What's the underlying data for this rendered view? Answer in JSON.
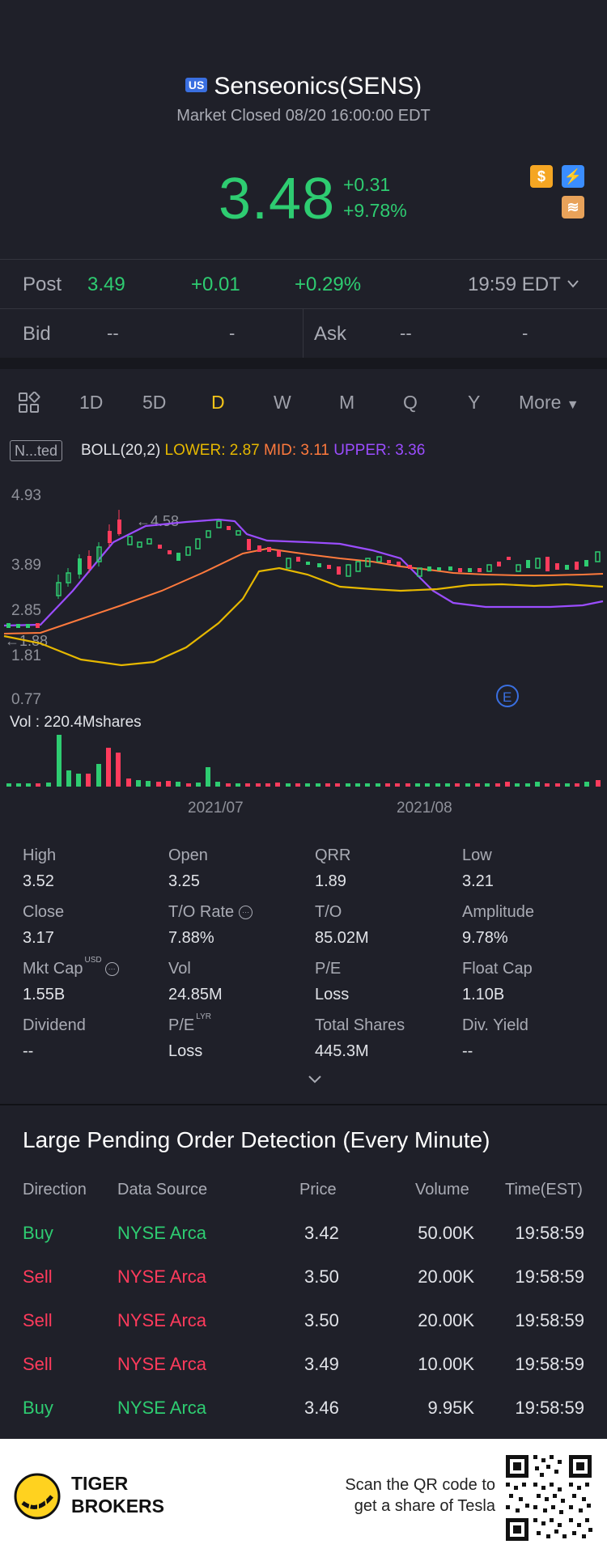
{
  "header": {
    "market_badge": "US",
    "title": "Senseonics(SENS)",
    "subtitle": "Market Closed 08/20 16:00:00 EDT",
    "price": "3.48",
    "change": "+0.31",
    "change_pct": "+9.78%"
  },
  "post": {
    "label": "Post",
    "price": "3.49",
    "change": "+0.01",
    "change_pct": "+0.29%",
    "time": "19:59 EDT"
  },
  "bidask": {
    "bid_label": "Bid",
    "bid_price": "--",
    "bid_size": "-",
    "ask_label": "Ask",
    "ask_price": "--",
    "ask_size": "-"
  },
  "tabs": [
    "1D",
    "5D",
    "D",
    "W",
    "M",
    "Q",
    "Y"
  ],
  "tabs_active": "D",
  "tabs_more": "More",
  "indicator": {
    "adjust_label": "N...ted",
    "name": "BOLL(20,2)",
    "lower": "LOWER: 2.87",
    "mid": "MID: 3.11",
    "upper": "UPPER: 3.36"
  },
  "chart_data": {
    "type": "candlestick",
    "y_ticks": [
      "4.93",
      "3.89",
      "2.85",
      "1.81",
      "0.77"
    ],
    "high_marker": "4.58",
    "low_marker": "1.88",
    "x_labels": [
      "2021/07",
      "2021/08"
    ],
    "volume_label": "Vol  : 220.4Mshares",
    "event_marker": "E",
    "colors": {
      "up": "#2ecc71",
      "down": "#ff3b5c",
      "upper": "#9b4dff",
      "mid": "#ff7a3d",
      "lower": "#e6b800"
    }
  },
  "stats": [
    {
      "label": "High",
      "value": "3.52"
    },
    {
      "label": "Open",
      "value": "3.25"
    },
    {
      "label": "QRR",
      "value": "1.89"
    },
    {
      "label": "Low",
      "value": "3.21"
    },
    {
      "label": "Close",
      "value": "3.17"
    },
    {
      "label": "T/O Rate",
      "value": "7.88%"
    },
    {
      "label": "T/O",
      "value": "85.02M"
    },
    {
      "label": "Amplitude",
      "value": "9.78%"
    },
    {
      "label": "Mkt Cap",
      "value": "1.55B"
    },
    {
      "label": "Vol",
      "value": "24.85M"
    },
    {
      "label": "P/E",
      "value": "Loss"
    },
    {
      "label": "Float Cap",
      "value": "1.10B"
    },
    {
      "label": "Dividend",
      "value": "--"
    },
    {
      "label": "P/E",
      "value": "Loss"
    },
    {
      "label": "Total Shares",
      "value": "445.3M"
    },
    {
      "label": "Div. Yield",
      "value": "--"
    }
  ],
  "stats_sup": {
    "mkt_cap": "USD",
    "pe_lyr": "LYR"
  },
  "orders": {
    "title": "Large Pending Order Detection (Every Minute)",
    "headers": [
      "Direction",
      "Data Source",
      "Price",
      "Volume",
      "Time(EST)"
    ],
    "rows": [
      {
        "direction": "Buy",
        "source": "NYSE Arca",
        "price": "3.42",
        "volume": "50.00K",
        "time": "19:58:59"
      },
      {
        "direction": "Sell",
        "source": "NYSE Arca",
        "price": "3.50",
        "volume": "20.00K",
        "time": "19:58:59"
      },
      {
        "direction": "Sell",
        "source": "NYSE Arca",
        "price": "3.50",
        "volume": "20.00K",
        "time": "19:58:59"
      },
      {
        "direction": "Sell",
        "source": "NYSE Arca",
        "price": "3.49",
        "volume": "10.00K",
        "time": "19:58:59"
      },
      {
        "direction": "Buy",
        "source": "NYSE Arca",
        "price": "3.46",
        "volume": "9.95K",
        "time": "19:58:59"
      }
    ]
  },
  "footer": {
    "brand_line1": "TIGER",
    "brand_line2": "BROKERS",
    "scan_line1": "Scan the QR code to",
    "scan_line2": "get a share of Tesla"
  }
}
